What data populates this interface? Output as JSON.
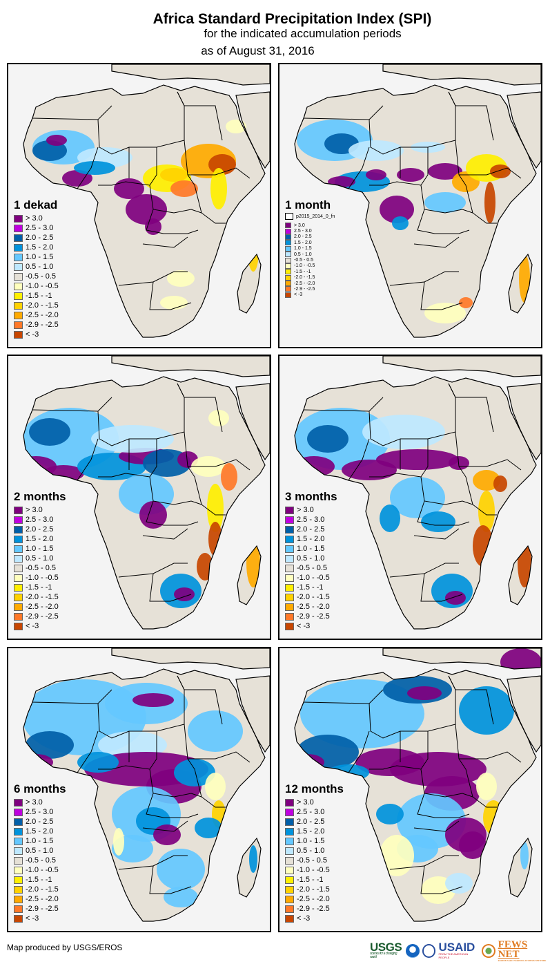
{
  "header": {
    "title": "Africa Standard Precipitation Index (SPI)",
    "subtitle": "for the indicated accumulation periods",
    "date_line": "as of August 31, 2016"
  },
  "legend_classes": [
    {
      "label": "> 3.0",
      "color": "#7f007f"
    },
    {
      "label": "2.5 - 3.0",
      "color": "#bf00df"
    },
    {
      "label": "2.0 - 2.5",
      "color": "#005fa8"
    },
    {
      "label": "1.5 - 2.0",
      "color": "#0093dc"
    },
    {
      "label": "1.0 - 1.5",
      "color": "#64c8ff"
    },
    {
      "label": "0.5 - 1.0",
      "color": "#bee8ff"
    },
    {
      "label": "-0.5 - 0.5",
      "color": "#e6e1d7"
    },
    {
      "label": "-1.0 - -0.5",
      "color": "#ffffbe"
    },
    {
      "label": "-1.5 - -1",
      "color": "#ffef00"
    },
    {
      "label": "-2.0 - -1.5",
      "color": "#ffd200"
    },
    {
      "label": "-2.5 - -2.0",
      "color": "#ffaa00"
    },
    {
      "label": "-2.9 - -2.5",
      "color": "#ff7828"
    },
    {
      "label": "< -3",
      "color": "#c84600"
    }
  ],
  "panels": [
    {
      "label": "1 dekad"
    },
    {
      "label": "1 month",
      "extra_layer_label": "p2015_2014_0_fn"
    },
    {
      "label": "2 months"
    },
    {
      "label": "3 months"
    },
    {
      "label": "6 months"
    },
    {
      "label": "12 months"
    }
  ],
  "map_colors": {
    "land_neutral": "#e6e1d7",
    "water_background": "#f4f4f4",
    "border": "#000000"
  },
  "footer": {
    "credit": "Map produced by USGS/EROS",
    "logos": {
      "usgs": "USGS",
      "usgs_tagline": "science for a changing world",
      "usaid": "USAID",
      "usaid_tagline": "FROM THE AMERICAN PEOPLE",
      "fews": "FEWS NET",
      "fews_tagline": "FAMINE EARLY WARNING SYSTEMS NETWORK"
    }
  }
}
